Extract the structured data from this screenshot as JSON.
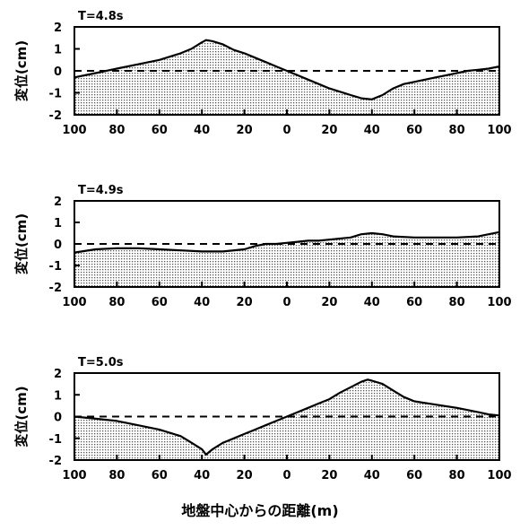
{
  "xlabel": "地盤中心からの距離(m)",
  "chart_data": [
    {
      "type": "area",
      "title": "T=4.8s",
      "ylabel": "変位(cm)",
      "x": [
        -100,
        -90,
        -80,
        -70,
        -60,
        -50,
        -45,
        -40,
        -38,
        -35,
        -30,
        -25,
        -20,
        -15,
        -10,
        -5,
        0,
        5,
        10,
        15,
        20,
        25,
        30,
        35,
        40,
        45,
        50,
        55,
        60,
        65,
        70,
        75,
        80,
        85,
        90,
        95,
        100
      ],
      "values": [
        -0.3,
        -0.1,
        0.1,
        0.3,
        0.5,
        0.8,
        1.0,
        1.3,
        1.4,
        1.35,
        1.2,
        0.95,
        0.8,
        0.6,
        0.4,
        0.2,
        0.0,
        -0.2,
        -0.4,
        -0.6,
        -0.8,
        -0.95,
        -1.1,
        -1.25,
        -1.3,
        -1.1,
        -0.8,
        -0.6,
        -0.5,
        -0.4,
        -0.3,
        -0.2,
        -0.1,
        0.0,
        0.05,
        0.1,
        0.2
      ],
      "xticks": [
        "100",
        "80",
        "60",
        "40",
        "20",
        "0",
        "20",
        "40",
        "60",
        "80",
        "100"
      ],
      "yticks": [
        "-2",
        "-1",
        "0",
        "1",
        "2"
      ],
      "ylim": [
        -2,
        2
      ],
      "xlim": [
        -100,
        100
      ],
      "reference_line": 0
    },
    {
      "type": "area",
      "title": "T=4.9s",
      "ylabel": "変位(cm)",
      "x": [
        -100,
        -90,
        -80,
        -70,
        -60,
        -50,
        -40,
        -30,
        -20,
        -15,
        -10,
        -5,
        0,
        5,
        10,
        15,
        20,
        30,
        35,
        40,
        45,
        50,
        60,
        70,
        80,
        90,
        100
      ],
      "values": [
        -0.4,
        -0.25,
        -0.2,
        -0.2,
        -0.25,
        -0.3,
        -0.35,
        -0.35,
        -0.25,
        -0.1,
        0.0,
        0.0,
        0.05,
        0.1,
        0.15,
        0.15,
        0.2,
        0.3,
        0.45,
        0.5,
        0.45,
        0.35,
        0.3,
        0.3,
        0.3,
        0.35,
        0.55
      ],
      "xticks": [
        "100",
        "80",
        "60",
        "40",
        "20",
        "0",
        "20",
        "40",
        "60",
        "80",
        "100"
      ],
      "yticks": [
        "-2",
        "-1",
        "0",
        "1",
        "2"
      ],
      "ylim": [
        -2,
        2
      ],
      "xlim": [
        -100,
        100
      ],
      "reference_line": 0
    },
    {
      "type": "area",
      "title": "T=5.0s",
      "ylabel": "変位(cm)",
      "x": [
        -100,
        -90,
        -80,
        -70,
        -60,
        -50,
        -45,
        -40,
        -38,
        -35,
        -30,
        -25,
        -20,
        -15,
        -10,
        -5,
        0,
        5,
        10,
        15,
        20,
        25,
        30,
        35,
        38,
        40,
        45,
        50,
        55,
        60,
        70,
        80,
        90,
        95,
        100
      ],
      "values": [
        0.0,
        -0.1,
        -0.2,
        -0.4,
        -0.6,
        -0.9,
        -1.2,
        -1.5,
        -1.75,
        -1.5,
        -1.2,
        -1.0,
        -0.8,
        -0.6,
        -0.4,
        -0.2,
        0.0,
        0.2,
        0.4,
        0.6,
        0.8,
        1.1,
        1.35,
        1.6,
        1.7,
        1.65,
        1.5,
        1.2,
        0.9,
        0.7,
        0.55,
        0.4,
        0.2,
        0.1,
        0.05
      ],
      "xticks": [
        "100",
        "80",
        "60",
        "40",
        "20",
        "0",
        "20",
        "40",
        "60",
        "80",
        "100"
      ],
      "yticks": [
        "-2",
        "-1",
        "0",
        "1",
        "2"
      ],
      "ylim": [
        -2,
        2
      ],
      "xlim": [
        -100,
        100
      ],
      "reference_line": 0
    }
  ]
}
